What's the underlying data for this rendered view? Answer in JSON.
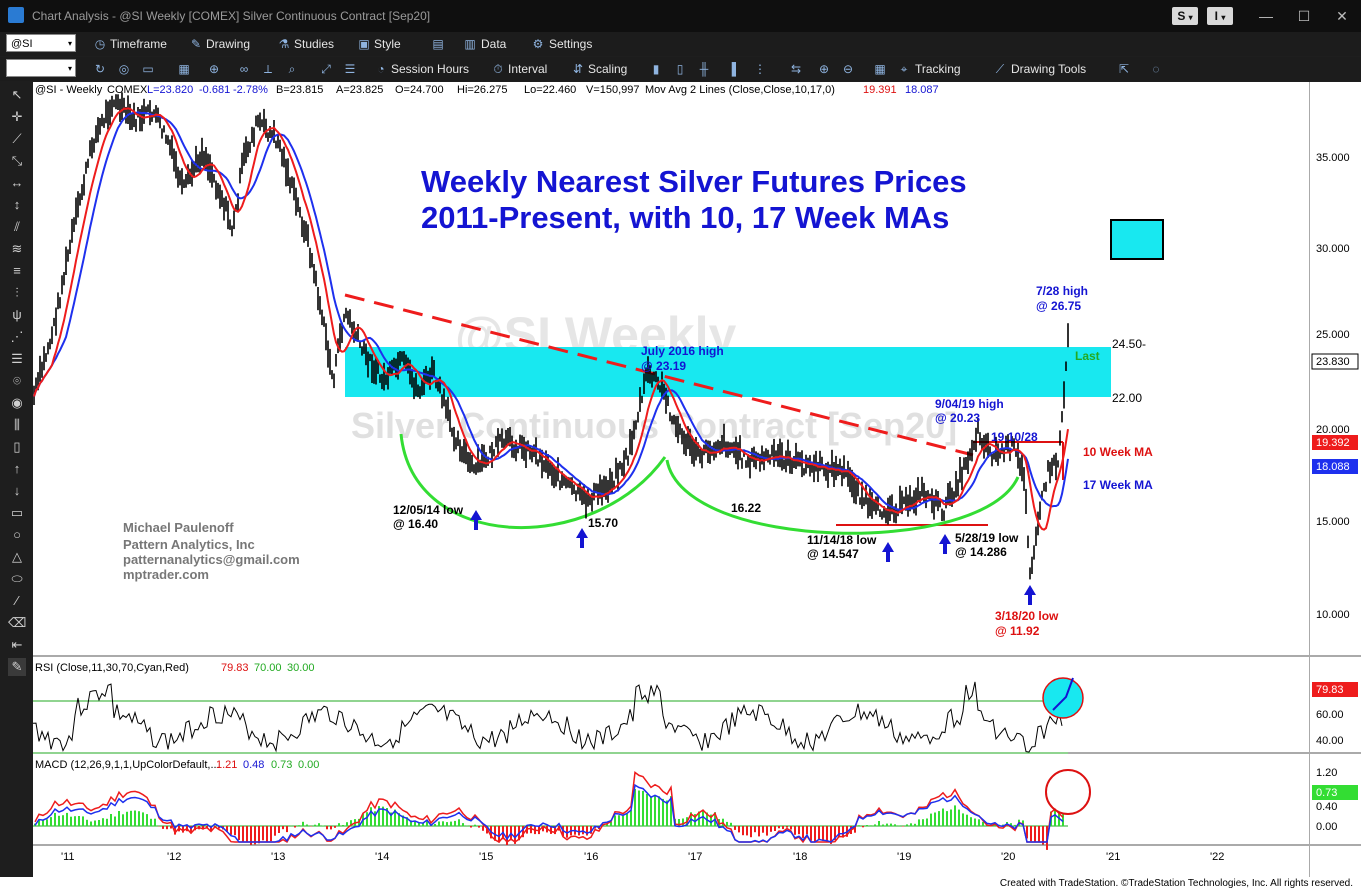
{
  "window": {
    "title": "Chart Analysis - @SI Weekly [COMEX] Silver Continuous Contract [Sep20]",
    "account_buttons": [
      "S",
      "I"
    ],
    "controls": [
      "—",
      "☐",
      "✕"
    ]
  },
  "toolbar1": {
    "symbol_value": "@SI",
    "timeframe_label": "Timeframe",
    "drawing_label": "Drawing",
    "studies_label": "Studies",
    "style_label": "Style",
    "data_label": "Data",
    "settings_label": "Settings"
  },
  "toolbar2": {
    "session_hours_label": "Session Hours",
    "interval_label": "Interval",
    "scaling_label": "Scaling",
    "tracking_label": "Tracking",
    "drawing_tools_label": "Drawing Tools"
  },
  "chart": {
    "header_info": {
      "symbol": "@SI - Weekly",
      "exchange": "COMEX",
      "last": "L=23.820",
      "change": "-0.681",
      "pct_change": "-2.78%",
      "bid": "B=23.815",
      "ask": "A=23.825",
      "open": "O=24.700",
      "high": "Hi=26.275",
      "low": "Lo=22.460",
      "volume": "V=150,997",
      "study_label": "Mov Avg 2 Lines (Close,Close,10,17,0)",
      "ma10_value": "19.391",
      "ma17_value": "18.087"
    },
    "watermark_symbol": "@SI Weekly",
    "watermark_name": "Silver Continuous Contract [Sep20]",
    "headline": {
      "line1": "Weekly Nearest Silver Futures Prices",
      "line2": "2011-Present, with 10, 17 Week MAs"
    },
    "author": {
      "name": "Michael Paulenoff",
      "company": "Pattern Analytics, Inc",
      "email": "patternanalytics@gmail.com",
      "site": "mptrader.com"
    },
    "annotations": {
      "july2016_l1": "July 2016 high",
      "july2016_l2": "@ 23.19",
      "high728_l1": "7/28 high",
      "high728_l2": "@ 26.75",
      "high904_l1": "9/04/19 high",
      "high904_l2": "@ 20.23",
      "low1205_l1": "12/05/14 low",
      "low1205_l2": "@ 16.40",
      "low1570": "15.70",
      "low1622": "16.22",
      "low1114_l1": "11/14/18 low",
      "low1114_l2": "@ 14.547",
      "low528_l1": "5/28/19 low",
      "low528_l2": "@ 14.286",
      "low318_l1": "3/18/20 low",
      "low318_l2": "@ 11.92",
      "level_1910": "19.10/28",
      "last_label": "Last",
      "zone_top": "24.50-",
      "zone_bottom": "22.00",
      "ma10_label": "10 Week MA",
      "ma17_label": "17 Week MA"
    },
    "price_axis": {
      "ticks": [
        "35.000",
        "30.000",
        "25.000",
        "20.000",
        "15.000",
        "10.000"
      ],
      "last_price": "23.830",
      "ma10_badge": "19.392",
      "ma17_badge": "18.088"
    },
    "rsi": {
      "label": "RSI (Close,11,30,70,Cyan,Red)",
      "value": "79.83",
      "overbought": "70.00",
      "oversold": "30.00",
      "ticks": [
        "60.00",
        "40.00"
      ],
      "badge": "79.83"
    },
    "macd": {
      "label": "MACD (12,26,9,1,1,UpColorDefault,...",
      "macd_value": "1.21",
      "signal_value": "0.48",
      "diff_value": "0.73",
      "zero_value": "0.00",
      "ticks": [
        "1.20",
        "0.40",
        "0.00"
      ],
      "badge": "0.73"
    },
    "x_axis": [
      "'11",
      "'12",
      "'13",
      "'14",
      "'15",
      "'16",
      "'17",
      "'18",
      "'19",
      "'20",
      "'21",
      "'22"
    ],
    "footer": "Created with TradeStation. ©TradeStation Technologies, Inc. All rights reserved."
  },
  "colors": {
    "accent_blue": "#1414d2",
    "cyan_zone": "#18e8f0",
    "ma10_red": "#ee1c1c",
    "ma17_blue": "#1e30ee",
    "bowl_green": "#33dd33",
    "annotation_red": "#dd1111"
  }
}
